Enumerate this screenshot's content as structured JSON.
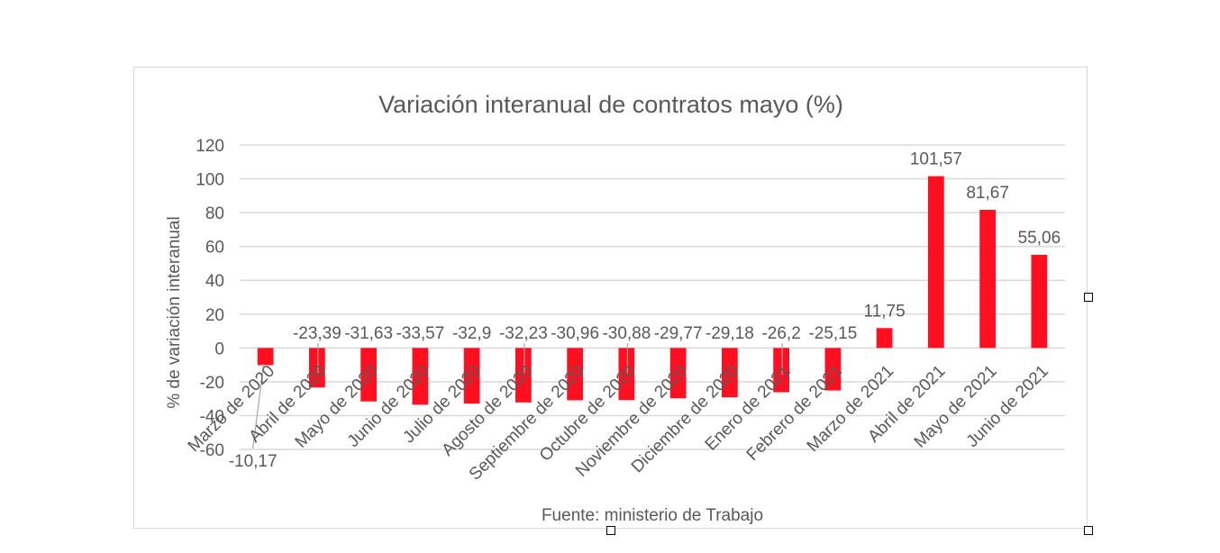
{
  "chart_data": {
    "type": "bar",
    "title": "Variación interanual de contratos mayo (%)",
    "ylabel": "% de variación interanual",
    "xlabel": "",
    "source_note": "Fuente: ministerio de Trabajo",
    "ylim": [
      -60,
      120
    ],
    "yticks": [
      120,
      100,
      80,
      60,
      40,
      20,
      0,
      -20,
      -40,
      -60
    ],
    "grid": true,
    "legend": "none",
    "colors": {
      "bar": "#ff0f1f",
      "grid": "#d9d9d9",
      "text": "#595959"
    },
    "categories": [
      "Marzo de 2020",
      "Abril de 2020",
      "Mayo de 2020",
      "Junio de 2020",
      "Julio de 2020",
      "Agosto de 2020",
      "Septiembre de 2020",
      "Octubre de 2020",
      "Noviembre de 2020",
      "Diciembre de 2020",
      "Enero de 2021",
      "Febrero de 2021",
      "Marzo de 2021",
      "Abril de 2021",
      "Mayo de 2021",
      "Junio de 2021"
    ],
    "values": [
      -10.17,
      -23.39,
      -31.63,
      -33.57,
      -32.9,
      -32.23,
      -30.96,
      -30.88,
      -29.77,
      -29.18,
      -26.2,
      -25.15,
      11.75,
      101.57,
      81.67,
      55.06
    ],
    "data_labels": [
      "-10,17",
      "-23,39",
      "-31,63",
      "-33,57",
      "-32,9",
      "-32,23",
      "-30,96",
      "-30,88",
      "-29,77",
      "-29,18",
      "-26,2",
      "-25,15",
      "11,75",
      "101,57",
      "81,67",
      "55,06"
    ]
  },
  "selection": {
    "handle_icon": "resize-handle-icon"
  }
}
